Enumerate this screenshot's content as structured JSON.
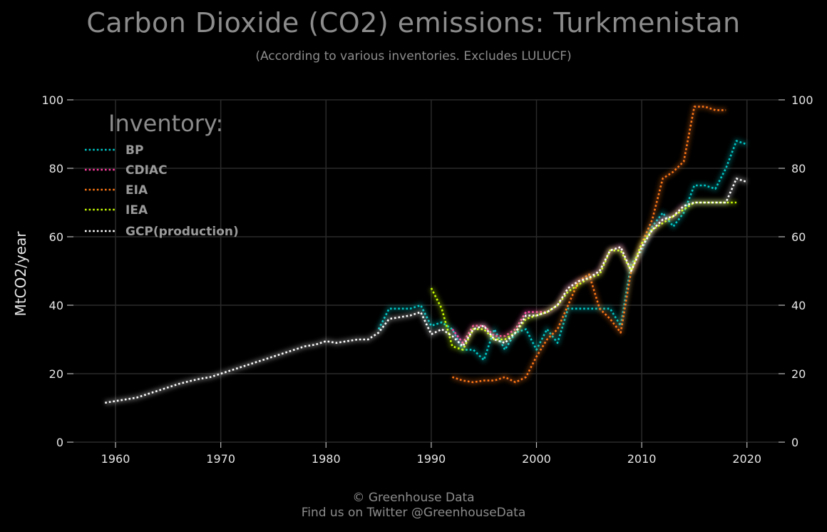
{
  "header": {
    "title": "Carbon Dioxide (CO2) emissions: Turkmenistan",
    "subtitle": "(According to various inventories. Excludes LULUCF)"
  },
  "footer": {
    "line1": "© Greenhouse Data",
    "line2": "Find us on Twitter @GreenhouseData"
  },
  "chart_data": {
    "type": "line",
    "title": "Carbon Dioxide (CO2) emissions: Turkmenistan",
    "subtitle": "(According to various inventories. Excludes LULUCF)",
    "xlabel": "",
    "ylabel": "MtCO2/year",
    "xlim": [
      1956,
      2023
    ],
    "ylim": [
      0,
      100
    ],
    "xticks": [
      1960,
      1970,
      1980,
      1990,
      2000,
      2010,
      2020
    ],
    "yticks": [
      0,
      20,
      40,
      60,
      80,
      100
    ],
    "grid": true,
    "legend": {
      "title": "Inventory:",
      "placement": "top-left"
    },
    "series": [
      {
        "name": "BP",
        "color": "#00c8c8",
        "x": [
          1985,
          1986,
          1987,
          1988,
          1989,
          1990,
          1991,
          1992,
          1993,
          1994,
          1995,
          1996,
          1997,
          1998,
          1999,
          2000,
          2001,
          2002,
          2003,
          2004,
          2005,
          2006,
          2007,
          2008,
          2009,
          2010,
          2011,
          2012,
          2013,
          2014,
          2015,
          2016,
          2017,
          2018,
          2019,
          2020
        ],
        "y": [
          33,
          39,
          39,
          39,
          40,
          34,
          35,
          33,
          27,
          27,
          24,
          33,
          27,
          32,
          33,
          27,
          33,
          29,
          39,
          39,
          39,
          39,
          39,
          34,
          52,
          56,
          63,
          67,
          63,
          67,
          75,
          75,
          74,
          80,
          88,
          87
        ]
      },
      {
        "name": "CDIAC",
        "color": "#ff3ca0",
        "x": [
          1992,
          1993,
          1994,
          1995,
          1996,
          1997,
          1998,
          1999,
          2000,
          2001,
          2002,
          2003,
          2004,
          2005,
          2006,
          2007,
          2008,
          2009,
          2010,
          2011,
          2012,
          2013,
          2014
        ],
        "y": [
          33,
          29,
          34,
          34,
          31,
          31,
          33,
          38,
          38,
          38,
          40,
          45,
          47,
          48,
          50,
          56,
          57,
          50,
          57,
          62,
          65,
          66,
          69
        ]
      },
      {
        "name": "EIA",
        "color": "#ff7814",
        "x": [
          1992,
          1993,
          1994,
          1995,
          1996,
          1997,
          1998,
          1999,
          2000,
          2001,
          2002,
          2003,
          2004,
          2005,
          2006,
          2007,
          2008,
          2009,
          2010,
          2011,
          2012,
          2013,
          2014,
          2015,
          2016,
          2017,
          2018
        ],
        "y": [
          19,
          18,
          17.5,
          18,
          18,
          19,
          17.5,
          19,
          25,
          30,
          33,
          40,
          47,
          49,
          39,
          36,
          32,
          50,
          58,
          65,
          77,
          79,
          82,
          98,
          98,
          97,
          97
        ]
      },
      {
        "name": "IEA",
        "color": "#c8ff00",
        "x": [
          1990,
          1991,
          1992,
          1993,
          1994,
          1995,
          1996,
          1997,
          1998,
          1999,
          2000,
          2001,
          2002,
          2003,
          2004,
          2005,
          2006,
          2007,
          2008,
          2009,
          2010,
          2011,
          2012,
          2013,
          2014,
          2015,
          2016,
          2017,
          2018,
          2019
        ],
        "y": [
          45,
          39,
          28,
          27,
          33,
          33,
          30,
          30,
          32,
          36,
          37,
          38,
          40,
          44,
          46,
          48,
          49,
          56,
          56,
          50,
          58,
          62,
          64,
          66,
          68,
          70,
          70,
          70,
          70,
          70
        ]
      },
      {
        "name": "GCP(production)",
        "color": "#ffffff",
        "x": [
          1959,
          1960,
          1961,
          1962,
          1963,
          1964,
          1965,
          1966,
          1967,
          1968,
          1969,
          1970,
          1971,
          1972,
          1973,
          1974,
          1975,
          1976,
          1977,
          1978,
          1979,
          1980,
          1981,
          1982,
          1983,
          1984,
          1985,
          1986,
          1987,
          1988,
          1989,
          1990,
          1991,
          1992,
          1993,
          1994,
          1995,
          1996,
          1997,
          1998,
          1999,
          2000,
          2001,
          2002,
          2003,
          2004,
          2005,
          2006,
          2007,
          2008,
          2009,
          2010,
          2011,
          2012,
          2013,
          2014,
          2015,
          2016,
          2017,
          2018,
          2019,
          2020
        ],
        "y": [
          11.5,
          12,
          12.5,
          13,
          14,
          15,
          16,
          17,
          17.8,
          18.5,
          19,
          20,
          21,
          22,
          23,
          24,
          25,
          26,
          27,
          28,
          28.5,
          29.5,
          29,
          29.5,
          30,
          30,
          32,
          36,
          36.5,
          37,
          38,
          31.5,
          33,
          31,
          28,
          33,
          34,
          30,
          29,
          32,
          37,
          37,
          38,
          40,
          45,
          47,
          48,
          50,
          56,
          57,
          50,
          57,
          62,
          65,
          66,
          69,
          70,
          70,
          70,
          70,
          77,
          76
        ]
      }
    ]
  }
}
